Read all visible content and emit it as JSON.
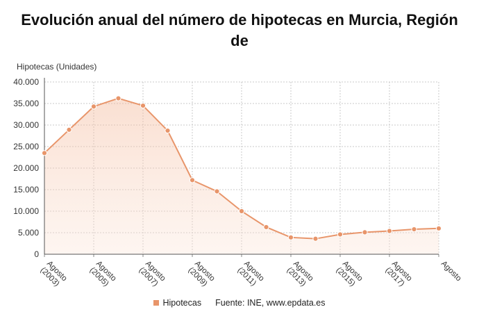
{
  "title_line1": "Evolución anual del número de hipotecas en Murcia, Región",
  "title_line2": "de",
  "chart_data": {
    "type": "area",
    "title": "Evolución anual del número de hipotecas en Murcia, Región de",
    "ylabel": "Hipotecas (Unidades)",
    "ylim": [
      0,
      40000
    ],
    "y_ticks": [
      "0",
      "5.000",
      "10.000",
      "15.000",
      "20.000",
      "25.000",
      "30.000",
      "35.000",
      "40.000"
    ],
    "x_tick_labels": [
      [
        "Agosto",
        "(2003)"
      ],
      [
        "Agosto",
        "(2005)"
      ],
      [
        "Agosto",
        "(2007)"
      ],
      [
        "Agosto",
        "(2009)"
      ],
      [
        "Agosto",
        "(2011)"
      ],
      [
        "Agosto",
        "(2013)"
      ],
      [
        "Agosto",
        "(2015)"
      ],
      [
        "Agosto",
        "(2017)"
      ],
      [
        "Agosto",
        ""
      ]
    ],
    "grid": true,
    "color": "#e8956a",
    "series": [
      {
        "name": "Hipotecas",
        "x": [
          2003,
          2004,
          2005,
          2006,
          2007,
          2008,
          2009,
          2010,
          2011,
          2012,
          2013,
          2014,
          2015,
          2016,
          2017,
          2018,
          2019
        ],
        "values": [
          23500,
          28900,
          34300,
          36200,
          34500,
          28700,
          17200,
          14600,
          10000,
          6300,
          3900,
          3600,
          4600,
          5100,
          5400,
          5800,
          6000
        ]
      }
    ]
  },
  "legend": {
    "label": "Hipotecas"
  },
  "source": "Fuente: INE, www.epdata.es"
}
